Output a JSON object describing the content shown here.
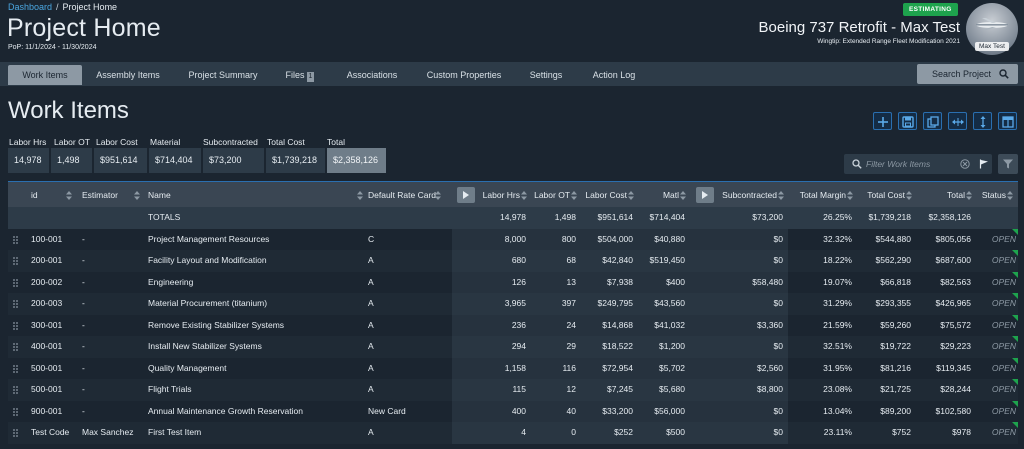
{
  "breadcrumb": {
    "root": "Dashboard",
    "current": "Project Home"
  },
  "page_title": "Project Home",
  "pop": "PoP: 11/1/2024 - 11/30/2024",
  "project": {
    "status": "ESTIMATING",
    "name": "Boeing 737 Retrofit - Max Test",
    "subtitle": "Wingtip: Extended Range Fleet Modification 2021",
    "avatar_label": "Max Test"
  },
  "tabs": [
    {
      "label": "Work Items"
    },
    {
      "label": "Assembly Items"
    },
    {
      "label": "Project Summary"
    },
    {
      "label": "Files",
      "badge": "1"
    },
    {
      "label": "Associations"
    },
    {
      "label": "Custom Properties"
    },
    {
      "label": "Settings"
    },
    {
      "label": "Action Log"
    }
  ],
  "search_project_label": "Search Project",
  "section_title": "Work Items",
  "summary": [
    {
      "label": "Labor Hrs",
      "value": "14,978"
    },
    {
      "label": "Labor OT",
      "value": "1,498"
    },
    {
      "label": "Labor Cost",
      "value": "$951,614"
    },
    {
      "label": "Material",
      "value": "$714,404"
    },
    {
      "label": "Subcontracted",
      "value": "$73,200"
    },
    {
      "label": "Total Cost",
      "value": "$1,739,218"
    },
    {
      "label": "Total",
      "value": "$2,358,126"
    }
  ],
  "filter_placeholder": "Filter Work Items",
  "columns": [
    "id",
    "Estimator",
    "Name",
    "Default Rate Card",
    "Labor Hrs",
    "Labor OT",
    "Labor Cost",
    "Matl",
    "Subcontracted",
    "Total Margin",
    "Total Cost",
    "Total",
    "Status"
  ],
  "totals_row": {
    "label": "TOTALS",
    "labor_hrs": "14,978",
    "labor_ot": "1,498",
    "labor_cost": "$951,614",
    "matl": "$714,404",
    "subcontracted": "$73,200",
    "total_margin": "26.25%",
    "total_cost": "$1,739,218",
    "total": "$2,358,126"
  },
  "rows": [
    {
      "id": "100-001",
      "estimator": "-",
      "name": "Project Management Resources",
      "rate_card": "C",
      "labor_hrs": "8,000",
      "labor_ot": "800",
      "labor_cost": "$504,000",
      "matl": "$40,880",
      "subcontracted": "$0",
      "total_margin": "32.32%",
      "total_cost": "$544,880",
      "total": "$805,056",
      "status": "OPEN"
    },
    {
      "id": "200-001",
      "estimator": "-",
      "name": "Facility Layout and Modification",
      "rate_card": "A",
      "labor_hrs": "680",
      "labor_ot": "68",
      "labor_cost": "$42,840",
      "matl": "$519,450",
      "subcontracted": "$0",
      "total_margin": "18.22%",
      "total_cost": "$562,290",
      "total": "$687,600",
      "status": "OPEN"
    },
    {
      "id": "200-002",
      "estimator": "-",
      "name": "Engineering",
      "rate_card": "A",
      "labor_hrs": "126",
      "labor_ot": "13",
      "labor_cost": "$7,938",
      "matl": "$400",
      "subcontracted": "$58,480",
      "total_margin": "19.07%",
      "total_cost": "$66,818",
      "total": "$82,563",
      "status": "OPEN"
    },
    {
      "id": "200-003",
      "estimator": "-",
      "name": "Material Procurement (titanium)",
      "rate_card": "A",
      "labor_hrs": "3,965",
      "labor_ot": "397",
      "labor_cost": "$249,795",
      "matl": "$43,560",
      "subcontracted": "$0",
      "total_margin": "31.29%",
      "total_cost": "$293,355",
      "total": "$426,965",
      "status": "OPEN"
    },
    {
      "id": "300-001",
      "estimator": "-",
      "name": "Remove Existing Stabilizer Systems",
      "rate_card": "A",
      "labor_hrs": "236",
      "labor_ot": "24",
      "labor_cost": "$14,868",
      "matl": "$41,032",
      "subcontracted": "$3,360",
      "total_margin": "21.59%",
      "total_cost": "$59,260",
      "total": "$75,572",
      "status": "OPEN"
    },
    {
      "id": "400-001",
      "estimator": "-",
      "name": "Install New Stabilizer Systems",
      "rate_card": "A",
      "labor_hrs": "294",
      "labor_ot": "29",
      "labor_cost": "$18,522",
      "matl": "$1,200",
      "subcontracted": "$0",
      "total_margin": "32.51%",
      "total_cost": "$19,722",
      "total": "$29,223",
      "status": "OPEN"
    },
    {
      "id": "500-001",
      "estimator": "-",
      "name": "Quality Management",
      "rate_card": "A",
      "labor_hrs": "1,158",
      "labor_ot": "116",
      "labor_cost": "$72,954",
      "matl": "$5,702",
      "subcontracted": "$2,560",
      "total_margin": "31.95%",
      "total_cost": "$81,216",
      "total": "$119,345",
      "status": "OPEN"
    },
    {
      "id": "500-001",
      "estimator": "-",
      "name": "Flight Trials",
      "rate_card": "A",
      "labor_hrs": "115",
      "labor_ot": "12",
      "labor_cost": "$7,245",
      "matl": "$5,680",
      "subcontracted": "$8,800",
      "total_margin": "23.08%",
      "total_cost": "$21,725",
      "total": "$28,244",
      "status": "OPEN"
    },
    {
      "id": "900-001",
      "estimator": "-",
      "name": "Annual Maintenance Growth Reservation",
      "rate_card": "New Card",
      "labor_hrs": "400",
      "labor_ot": "40",
      "labor_cost": "$33,200",
      "matl": "$56,000",
      "subcontracted": "$0",
      "total_margin": "13.04%",
      "total_cost": "$89,200",
      "total": "$102,580",
      "status": "OPEN"
    },
    {
      "id": "Test Code",
      "estimator": "Max Sanchez",
      "name": "First Test Item",
      "rate_card": "A",
      "labor_hrs": "4",
      "labor_ot": "0",
      "labor_cost": "$252",
      "matl": "$500",
      "subcontracted": "$0",
      "total_margin": "23.11%",
      "total_cost": "$752",
      "total": "$978",
      "status": "OPEN"
    }
  ],
  "colors": {
    "accent": "#2a6fb0",
    "status_green": "#1ea34d",
    "link": "#4aa6e0"
  },
  "icons": [
    "search-icon",
    "add-icon",
    "save-icon",
    "copy-icon",
    "expand-horizontal-icon",
    "expand-vertical-icon",
    "layout-icon",
    "clear-icon",
    "flag-icon",
    "filter-icon",
    "sort-icon",
    "play-icon",
    "drag-handle-icon"
  ]
}
